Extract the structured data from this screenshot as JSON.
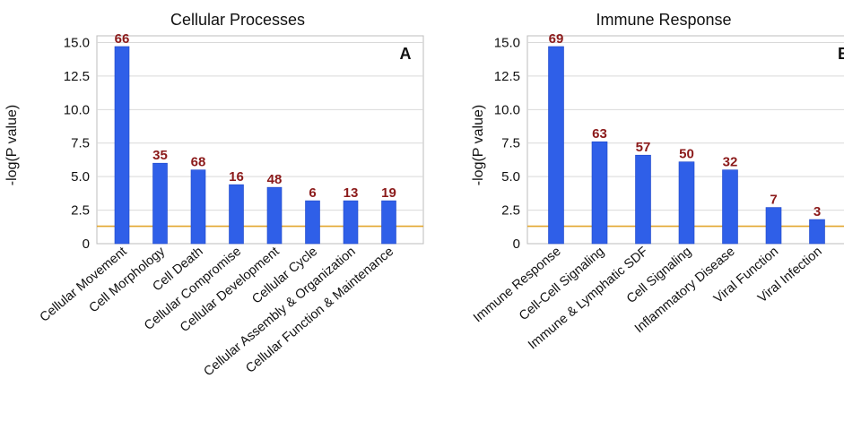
{
  "colors": {
    "bar": "#2f5fe8",
    "bar_edge": "#1e46c8",
    "threshold_line": "#e3a62c",
    "grid": "#d9d9d9",
    "frame": "#bdbdbd",
    "data_label": "#8b1a1a"
  },
  "chart_data": [
    {
      "type": "bar",
      "title": "Cellular Processes",
      "panel_label": "A",
      "ylabel": "-log(P value)",
      "ylim": [
        0,
        15.5
      ],
      "yticks": [
        "0",
        "2.5",
        "5.0",
        "7.5",
        "10.0",
        "12.5",
        "15.0"
      ],
      "threshold": 1.3,
      "grid": true,
      "categories": [
        "Cellular Movement",
        "Cell Morphology",
        "Cell Death",
        "Cellular Compromise",
        "Cellular Development",
        "Cellular Cycle",
        "Cellular Assembly & Organization",
        "Cellular Function & Maintenance"
      ],
      "values": [
        14.7,
        6.0,
        5.5,
        4.4,
        4.2,
        3.2,
        3.2,
        3.2
      ],
      "data_labels": [
        "66",
        "35",
        "68",
        "16",
        "48",
        "6",
        "13",
        "19"
      ]
    },
    {
      "type": "bar",
      "title": "Immune Response",
      "panel_label": "B",
      "ylabel": "-log(P value)",
      "ylim": [
        0,
        15.5
      ],
      "yticks": [
        "0",
        "2.5",
        "5.0",
        "7.5",
        "10.0",
        "12.5",
        "15.0"
      ],
      "threshold": 1.3,
      "grid": true,
      "categories": [
        "Immune Response",
        "Cell-Cell Signaling",
        "Immune & Lymphatic SDF",
        "Cell Signaling",
        "Inflammatory Disease",
        "Viral Function",
        "Viral Infection"
      ],
      "values": [
        14.7,
        7.6,
        6.6,
        6.1,
        5.5,
        2.7,
        1.8
      ],
      "data_labels": [
        "69",
        "63",
        "57",
        "50",
        "32",
        "7",
        "3"
      ]
    }
  ]
}
